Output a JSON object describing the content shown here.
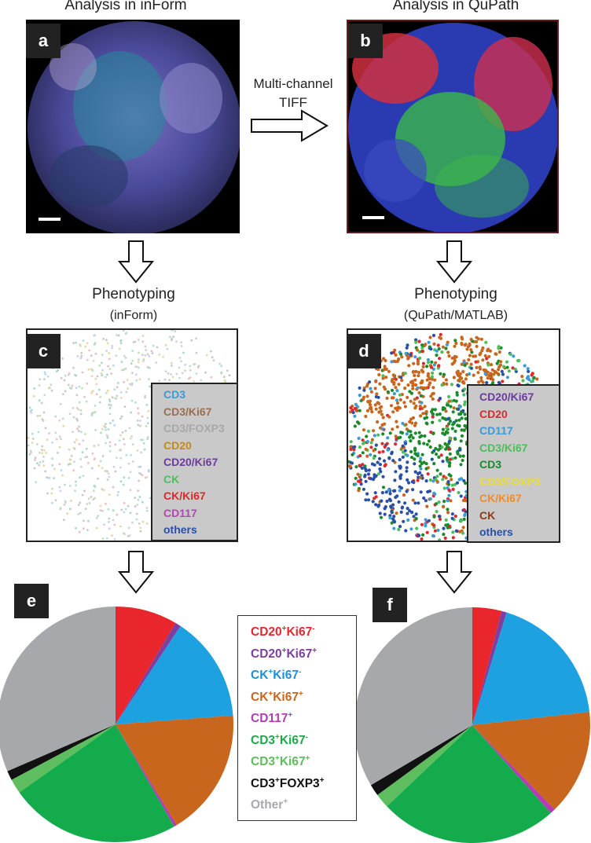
{
  "panels": {
    "a": {
      "label": "a",
      "title": "Analysis in inForm"
    },
    "b": {
      "label": "b",
      "title": "Analysis in QuPath"
    },
    "c": {
      "label": "c",
      "title": "Phenotyping",
      "subtitle": "(inForm)"
    },
    "d": {
      "label": "d",
      "title": "Phenotyping",
      "subtitle": "(QuPath/MATLAB)"
    },
    "e": {
      "label": "e"
    },
    "f": {
      "label": "f"
    }
  },
  "arrow_label": {
    "line1": "Multi-channel",
    "line2": "TIFF"
  },
  "legend_c": [
    {
      "text": "CD3",
      "color": "#3a9bd6"
    },
    {
      "text": "CD3/Ki67",
      "color": "#9a6e52"
    },
    {
      "text": "CD3/FOXP3",
      "color": "#a8a8a8"
    },
    {
      "text": "CD20",
      "color": "#c48a18"
    },
    {
      "text": "CD20/Ki67",
      "color": "#6c3c9c"
    },
    {
      "text": "CK",
      "color": "#4cbf5c"
    },
    {
      "text": "CK/Ki67",
      "color": "#e0282c"
    },
    {
      "text": "CD117",
      "color": "#b048b0"
    },
    {
      "text": "others",
      "color": "#2a4fa8"
    }
  ],
  "legend_d": [
    {
      "text": "CD20/Ki67",
      "color": "#6c3c9c"
    },
    {
      "text": "CD20",
      "color": "#e0282c"
    },
    {
      "text": "CD117",
      "color": "#3a9bd6"
    },
    {
      "text": "CD3/Ki67",
      "color": "#4cbf5c"
    },
    {
      "text": "CD3",
      "color": "#1a8a2a"
    },
    {
      "text": "CD3/FOXP3",
      "color": "#e8e030"
    },
    {
      "text": "CK/Ki67",
      "color": "#f08c2c"
    },
    {
      "text": "CK",
      "color": "#8a3c1a"
    },
    {
      "text": "others",
      "color": "#2a4fa8"
    }
  ],
  "pie_legend": [
    {
      "a": "CD20",
      "b": "Ki67",
      "sa": "+",
      "sb": "-",
      "color": "#e8262c"
    },
    {
      "a": "CD20",
      "b": "Ki67",
      "sa": "+",
      "sb": "+",
      "color": "#7d3fa0"
    },
    {
      "a": "CK",
      "b": "Ki67",
      "sa": "+",
      "sb": "-",
      "color": "#1f8fd6"
    },
    {
      "a": "CK",
      "b": "Ki67",
      "sa": "+",
      "sb": "+",
      "color": "#c8661e"
    },
    {
      "a": "CD117",
      "b": "",
      "sa": "+",
      "sb": "",
      "color": "#b63cb3"
    },
    {
      "a": "CD3",
      "b": "Ki67",
      "sa": "+",
      "sb": "-",
      "color": "#1bab4a"
    },
    {
      "a": "CD3",
      "b": "Ki67",
      "sa": "+",
      "sb": "+",
      "color": "#5ebd5e"
    },
    {
      "a": "CD3",
      "b": "FOXP3",
      "sa": "+",
      "sb": "+",
      "color": "#111111"
    },
    {
      "a": "Other",
      "b": "",
      "sa": "+",
      "sb": "",
      "color": "#a7a8ab"
    }
  ],
  "chart_data": [
    {
      "type": "pie",
      "title": "",
      "categories": [
        "CD20+Ki67-",
        "CD20+Ki67+",
        "CK+Ki67-",
        "CK+Ki67+",
        "CD117+",
        "CD3+Ki67-",
        "CD3+Ki67+",
        "CD3+FOXP3+",
        "Other+"
      ],
      "values": [
        8.5,
        0.8,
        14.5,
        17.5,
        0.4,
        23.5,
        2.0,
        1.3,
        31.5
      ],
      "colors": [
        "#e8262c",
        "#7d3fa0",
        "#1ea1e0",
        "#c8661e",
        "#b63cb3",
        "#13ab4c",
        "#5ebd5e",
        "#111111",
        "#a7a8ab"
      ]
    },
    {
      "type": "pie",
      "title": "",
      "categories": [
        "CD20+Ki67-",
        "CD20+Ki67+",
        "CK+Ki67-",
        "CK+Ki67+",
        "CD117+",
        "CD3+Ki67-",
        "CD3+Ki67+",
        "CD3+FOXP3+",
        "Other+"
      ],
      "values": [
        4.0,
        0.7,
        18.5,
        14.5,
        0.7,
        24.5,
        2.0,
        1.6,
        33.5
      ],
      "colors": [
        "#e8262c",
        "#7d3fa0",
        "#1ea1e0",
        "#c8661e",
        "#b63cb3",
        "#13ab4c",
        "#5ebd5e",
        "#111111",
        "#a7a8ab"
      ]
    }
  ]
}
